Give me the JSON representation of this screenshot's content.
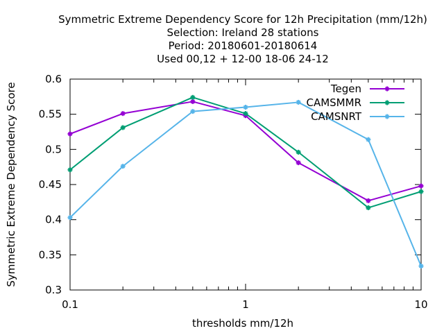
{
  "chart_data": {
    "type": "line",
    "title_lines": [
      "Symmetric Extreme Dependency Score  for 12h Precipitation (mm/12h)",
      "Selection: Ireland     28 stations",
      "Period: 20180601-20180614",
      "Used  00,12  + 12-00 18-06 24-12"
    ],
    "xlabel": "thresholds mm/12h",
    "ylabel": "Symmetric Extreme Dependency Score",
    "x_scale": "log",
    "xlim": [
      0.1,
      10
    ],
    "ylim": [
      0.3,
      0.6
    ],
    "x_ticks": [
      0.1,
      1,
      10
    ],
    "x_tick_labels": [
      "0.1",
      "1",
      "10"
    ],
    "y_ticks": [
      0.3,
      0.35,
      0.4,
      0.45,
      0.5,
      0.55,
      0.6
    ],
    "y_tick_labels": [
      "0.3",
      "0.35",
      "0.4",
      "0.45",
      "0.5",
      "0.55",
      "0.6"
    ],
    "grid": false,
    "legend_position": "top-right",
    "x": [
      0.1,
      0.2,
      0.5,
      1,
      2,
      5,
      10
    ],
    "series": [
      {
        "name": "Tegen",
        "color": "#9400d3",
        "values": [
          0.522,
          0.551,
          0.568,
          0.548,
          0.481,
          0.427,
          0.448
        ]
      },
      {
        "name": "CAMSMMR",
        "color": "#009e73",
        "values": [
          0.471,
          0.531,
          0.574,
          0.551,
          0.496,
          0.417,
          0.44
        ]
      },
      {
        "name": "CAMSNRT",
        "color": "#56b4e9",
        "values": [
          0.403,
          0.476,
          0.554,
          0.56,
          0.567,
          0.514,
          0.334
        ]
      }
    ]
  }
}
